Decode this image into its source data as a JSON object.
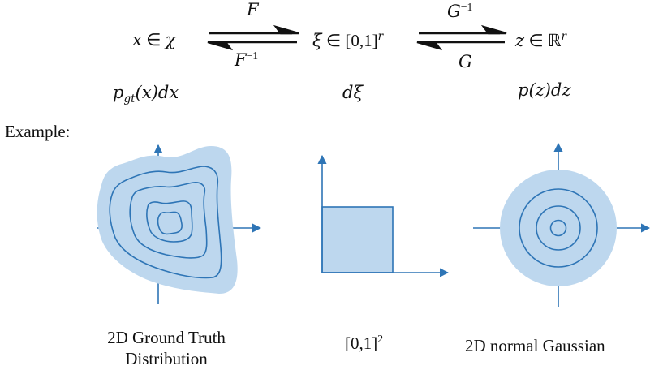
{
  "top_row": {
    "left": {
      "var": "x",
      "rel": " ∈ ",
      "set": "χ"
    },
    "middle": {
      "var": "ξ",
      "rel": " ∈ ",
      "set": "[0,1]",
      "sup": "r"
    },
    "right": {
      "var": "z",
      "rel": " ∈ ",
      "set": "ℝ",
      "sup": "r"
    }
  },
  "maps": {
    "F": "F",
    "F_inv_base": "F",
    "F_inv_sup": "−1",
    "G_inv_base": "G",
    "G_inv_sup": "−1",
    "G": "G"
  },
  "measures": {
    "left_base": "p",
    "left_sub": "gt",
    "left_rest": "(x)dx",
    "middle": "dξ",
    "right": "p(z)dz"
  },
  "example_label": "Example:",
  "captions": {
    "left_line1": "2D Ground Truth",
    "left_line2": "Distribution",
    "middle_base": "[0,1]",
    "middle_sup": "2",
    "right": "2D normal Gaussian"
  },
  "colors": {
    "fill": "#bdd7ee",
    "line": "#2e75b6",
    "arrow_black": "#111111"
  }
}
